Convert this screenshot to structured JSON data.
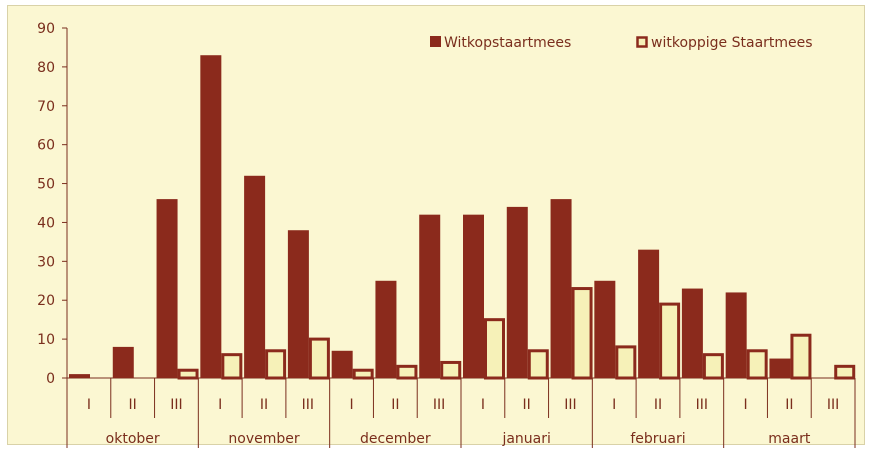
{
  "chart_data": {
    "type": "bar",
    "title": "",
    "xlabel": "",
    "ylabel": "",
    "ylim": [
      0,
      90
    ],
    "yticks": [
      "0",
      "10",
      "20",
      "30",
      "40",
      "50",
      "60",
      "70",
      "80",
      "90"
    ],
    "grid": false,
    "legend_position": "top-right",
    "categories": [
      "I",
      "II",
      "III",
      "I",
      "II",
      "III",
      "I",
      "II",
      "III",
      "I",
      "II",
      "III",
      "I",
      "II",
      "III",
      "I",
      "II",
      "III"
    ],
    "groups": [
      "oktober",
      "november",
      "december",
      "januari",
      "februari",
      "maart"
    ],
    "series": [
      {
        "name": "Witkopstaartmees",
        "color": "#8b2a1c",
        "values": [
          1,
          8,
          46,
          83,
          52,
          38,
          7,
          25,
          42,
          42,
          44,
          46,
          25,
          33,
          23,
          22,
          5,
          0
        ]
      },
      {
        "name": "witkoppige Staartmees",
        "color": "#f6f1b8",
        "values": [
          0,
          0,
          2,
          6,
          7,
          10,
          2,
          3,
          4,
          15,
          7,
          23,
          8,
          19,
          6,
          7,
          11,
          3
        ]
      }
    ],
    "colors": {
      "axis": "#7a2e1d",
      "series2_border": "#8b2a1c",
      "background": "#fbf7d2"
    }
  }
}
